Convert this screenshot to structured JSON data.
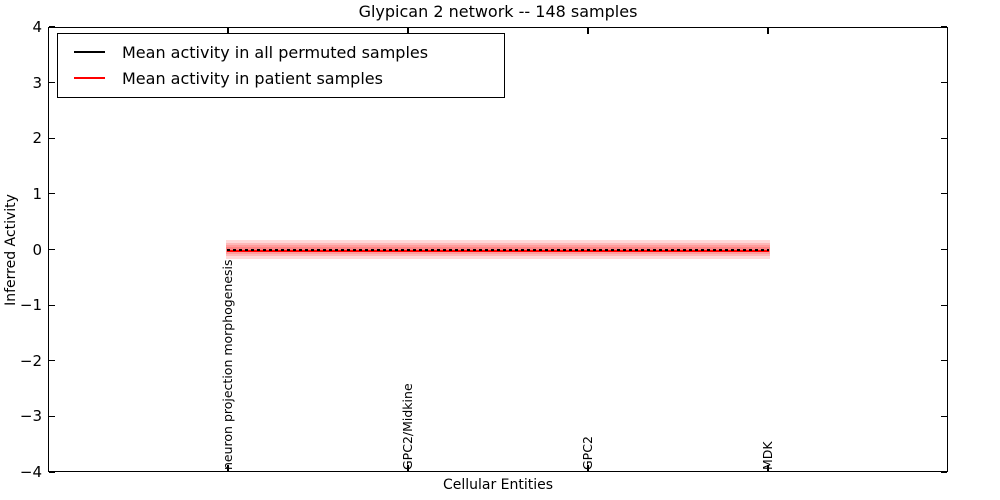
{
  "chart_data": {
    "type": "line",
    "title": "Glypican 2 network -- 148 samples",
    "xlabel": "Cellular Entities",
    "ylabel": "Inferred Activity",
    "ylim": [
      -4,
      4
    ],
    "ytick_labels": [
      "4",
      "3",
      "2",
      "1",
      "0",
      "−1",
      "−2",
      "−3",
      "−4"
    ],
    "ytick_values": [
      4,
      3,
      2,
      1,
      0,
      -1,
      -2,
      -3,
      -4
    ],
    "categories": [
      "neuron projection morphogenesis",
      "GPC2/Midkine",
      "GPC2",
      "MDK"
    ],
    "series": [
      {
        "name": "Mean activity in all permuted samples",
        "color": "#000000",
        "line_style": "dashed",
        "values": [
          0.0,
          0.0,
          0.0,
          0.0
        ]
      },
      {
        "name": "Mean activity in patient samples",
        "color": "#ff0000",
        "line_style": "solid",
        "values": [
          -0.02,
          -0.02,
          -0.02,
          -0.02
        ]
      }
    ],
    "uncertainty_band": {
      "color": "#ff0000",
      "layer_alpha": 0.15,
      "half_widths": [
        0.17,
        0.115,
        0.08,
        0.045
      ]
    },
    "legend": {
      "position": "upper left",
      "entries": [
        "Mean activity in all permuted samples",
        "Mean activity in patient samples"
      ]
    },
    "grid": false
  }
}
